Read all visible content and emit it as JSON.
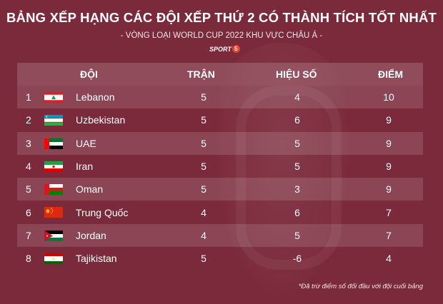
{
  "title": "BẢNG XẾP HẠNG CÁC ĐỘI XẾP THỨ 2 CÓ THÀNH TÍCH TỐT NHẤT",
  "subtitle": "- VÒNG LOẠI WORLD CUP 2022 KHU VỰC CHÂU Á -",
  "logo": {
    "text": "SPORT",
    "number": "5"
  },
  "headers": {
    "team": "ĐỘI",
    "matches": "TRẬN",
    "goal_diff": "HIỆU SỐ",
    "points": "ĐIỂM"
  },
  "rows": [
    {
      "rank": "1",
      "team": "Lebanon",
      "matches": "5",
      "goal_diff": "4",
      "points": "10",
      "flag": "lebanon-flag-icon"
    },
    {
      "rank": "2",
      "team": "Uzbekistan",
      "matches": "5",
      "goal_diff": "6",
      "points": "9",
      "flag": "uzbekistan-flag-icon"
    },
    {
      "rank": "3",
      "team": "UAE",
      "matches": "5",
      "goal_diff": "5",
      "points": "9",
      "flag": "uae-flag-icon"
    },
    {
      "rank": "4",
      "team": "Iran",
      "matches": "5",
      "goal_diff": "5",
      "points": "9",
      "flag": "iran-flag-icon"
    },
    {
      "rank": "5",
      "team": "Oman",
      "matches": "5",
      "goal_diff": "3",
      "points": "9",
      "flag": "oman-flag-icon"
    },
    {
      "rank": "6",
      "team": "Trung Quốc",
      "matches": "4",
      "goal_diff": "6",
      "points": "7",
      "flag": "china-flag-icon"
    },
    {
      "rank": "7",
      "team": "Jordan",
      "matches": "4",
      "goal_diff": "5",
      "points": "7",
      "flag": "jordan-flag-icon"
    },
    {
      "rank": "8",
      "team": "Tajikistan",
      "matches": "5",
      "goal_diff": "-6",
      "points": "4",
      "flag": "tajikistan-flag-icon"
    }
  ],
  "footnote": "*Đã trừ điểm số đối đầu với đội cuối bảng",
  "colors": {
    "background": "#7b2a3b",
    "row_highlight": "rgba(255,255,255,0.13)"
  }
}
